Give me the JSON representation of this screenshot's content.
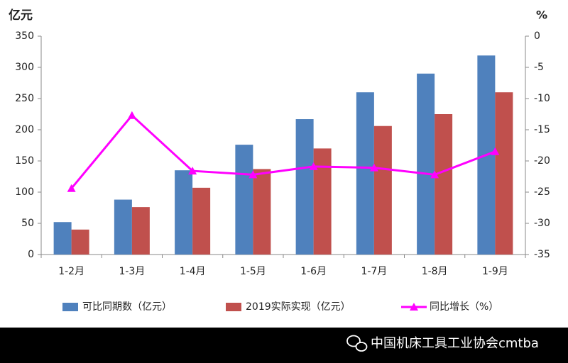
{
  "chart_data": {
    "type": "bar_line",
    "y_unit": "亿元",
    "y2_unit": "%",
    "categories": [
      "1-2月",
      "1-3月",
      "1-4月",
      "1-5月",
      "1-6月",
      "1-7月",
      "1-8月",
      "1-9月"
    ],
    "series": [
      {
        "name": "可比同期数（亿元）",
        "color": "#4f81bd",
        "type": "bar",
        "values": [
          52,
          88,
          135,
          176,
          217,
          260,
          290,
          319
        ]
      },
      {
        "name": "2019实际实现（亿元）",
        "color": "#c0504d",
        "type": "bar",
        "values": [
          40,
          76,
          107,
          137,
          170,
          206,
          225,
          260
        ]
      },
      {
        "name": "同比增长（%）",
        "color": "#ff00ff",
        "type": "line",
        "axis": "y2",
        "values": [
          -24.4,
          -12.7,
          -21.6,
          -22.2,
          -20.9,
          -21.1,
          -22.2,
          -18.5
        ]
      }
    ],
    "ylim": [
      0,
      350
    ],
    "yticks": [
      0,
      50,
      100,
      150,
      200,
      250,
      300,
      350
    ],
    "y2lim": [
      -35,
      0
    ],
    "y2ticks": [
      0,
      -5,
      -10,
      -15,
      -20,
      -25,
      -30,
      -35
    ],
    "grid": false
  },
  "footer_text": "中国机床工具工业协会cmtba"
}
